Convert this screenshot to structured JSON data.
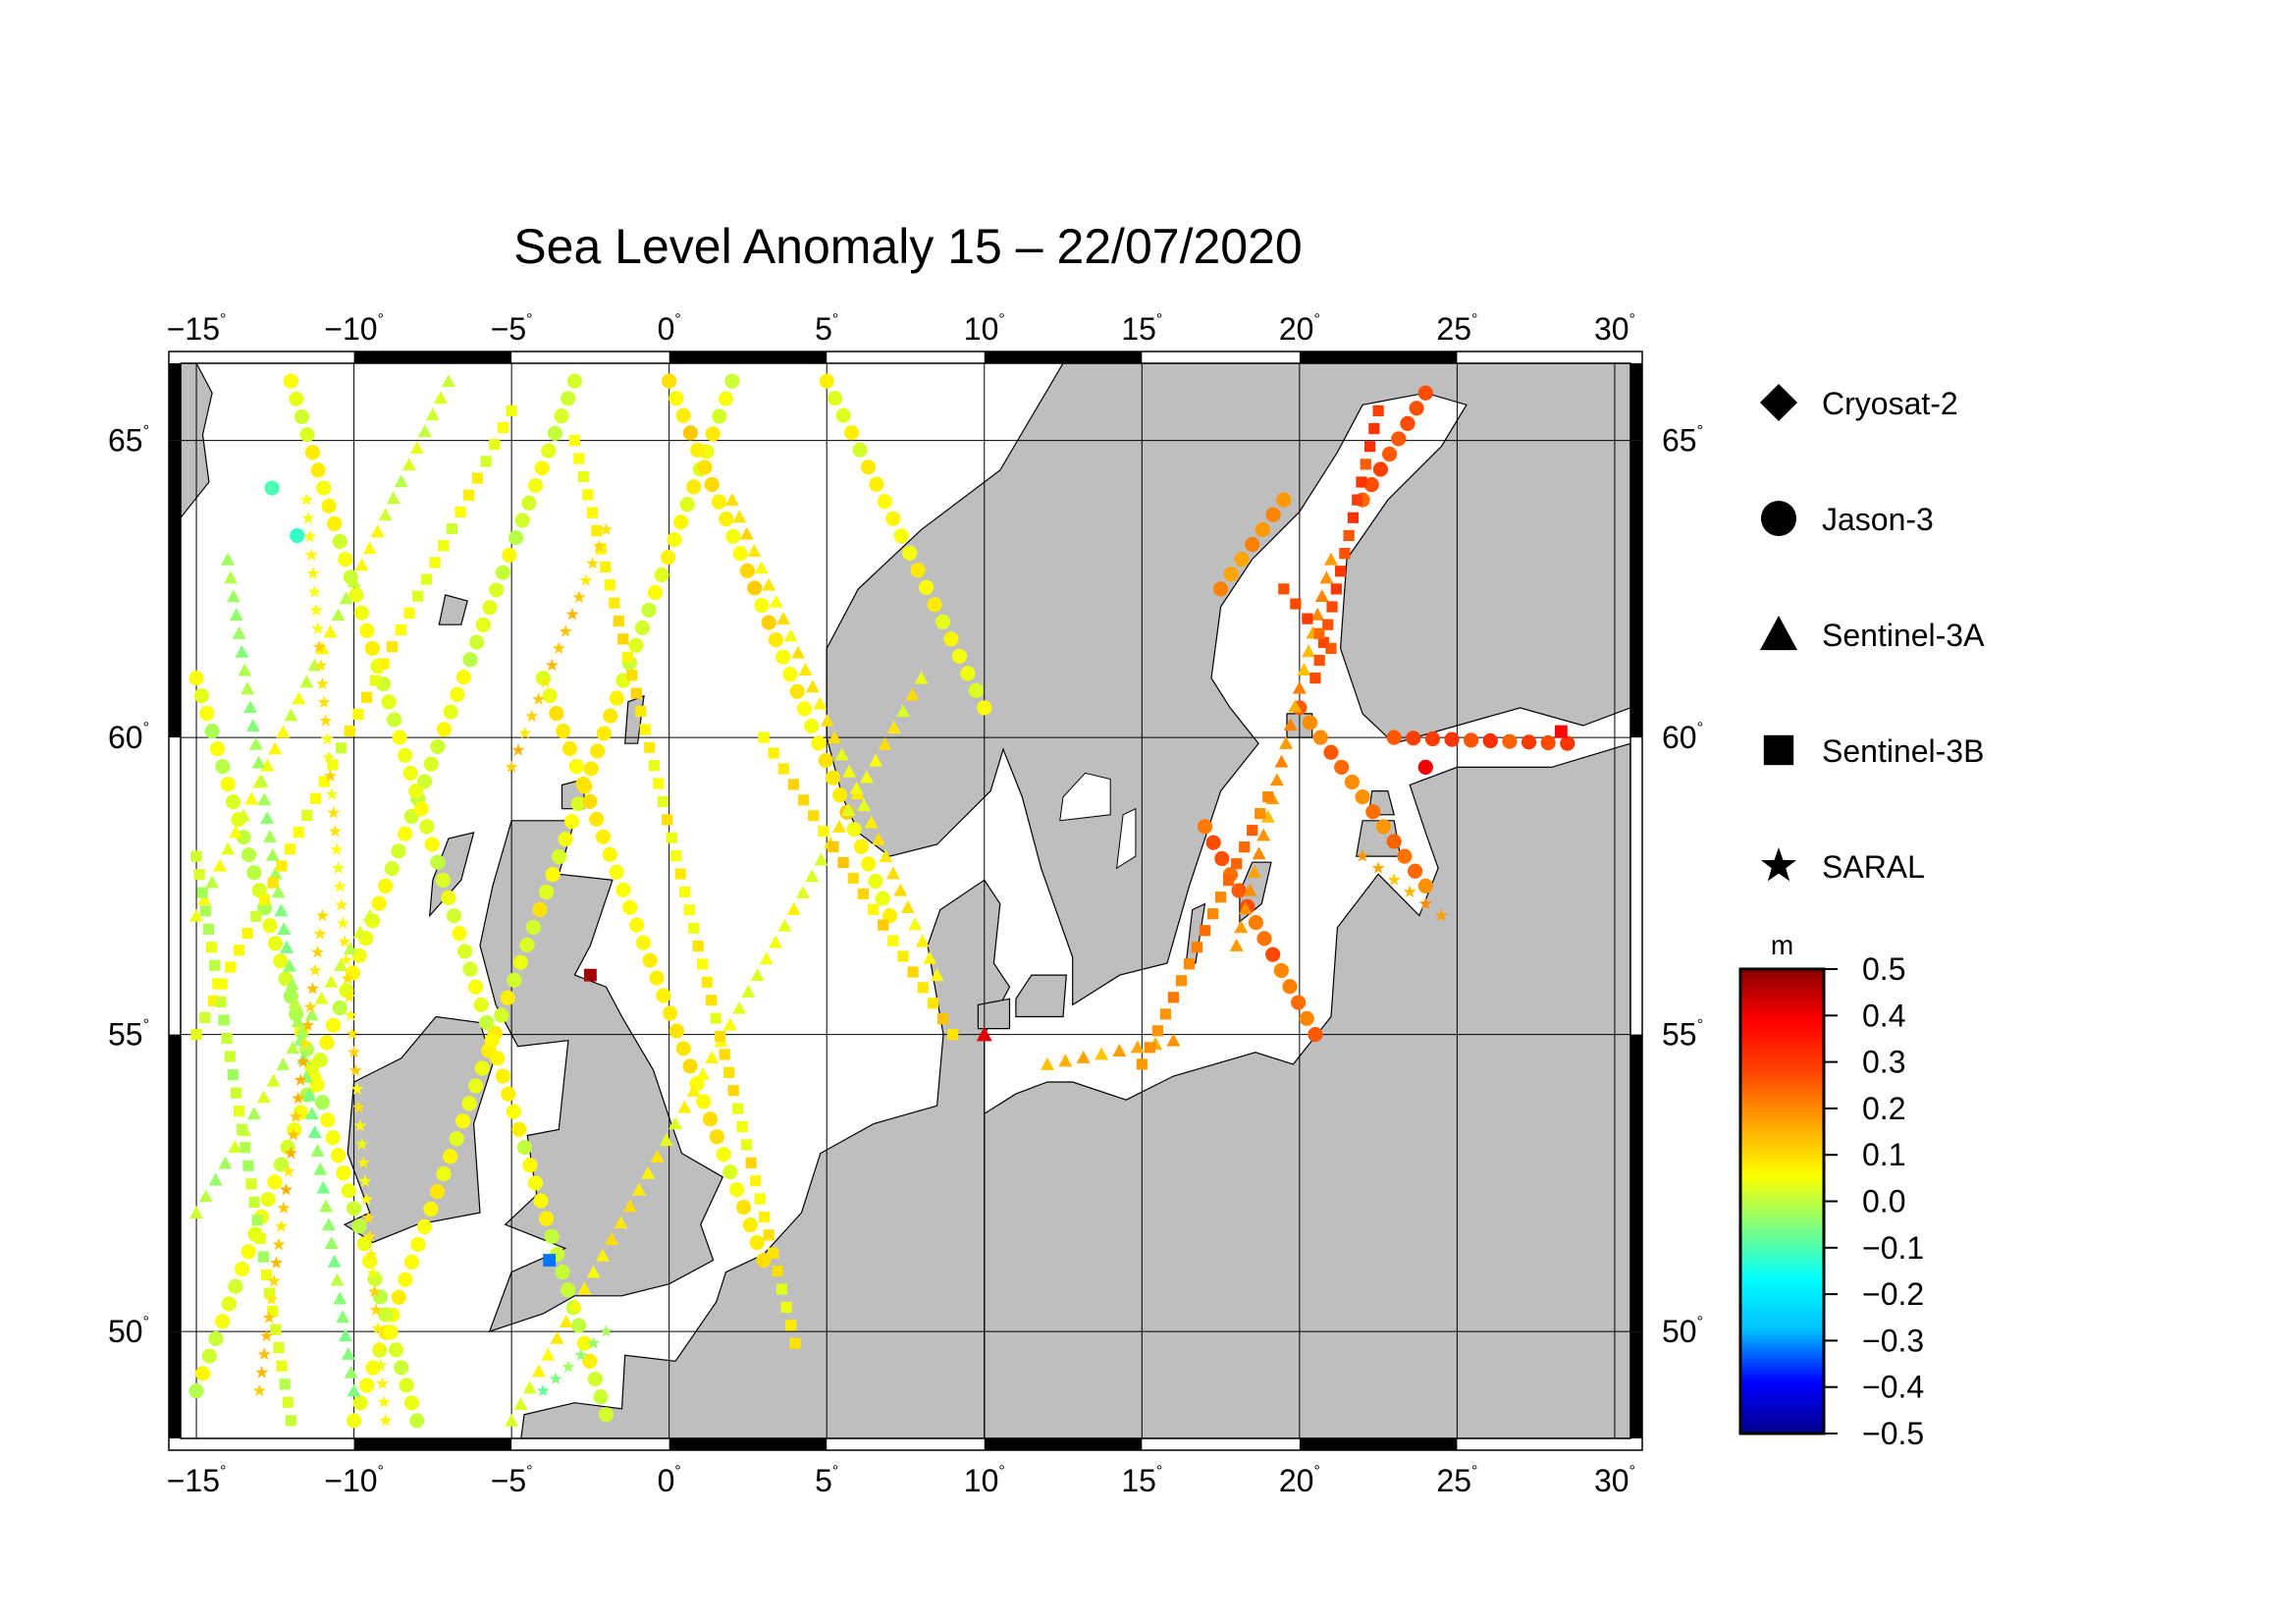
{
  "title": "Sea Level Anomaly 15 – 22/07/2020",
  "map": {
    "lon_range": [
      -15.5,
      30.5
    ],
    "lat_range": [
      48.2,
      66.3
    ],
    "lon_ticks": [
      {
        "value": -15,
        "label": "−15"
      },
      {
        "value": -10,
        "label": "−10"
      },
      {
        "value": -5,
        "label": "−5"
      },
      {
        "value": 0,
        "label": "0"
      },
      {
        "value": 5,
        "label": "5"
      },
      {
        "value": 10,
        "label": "10"
      },
      {
        "value": 15,
        "label": "15"
      },
      {
        "value": 20,
        "label": "20"
      },
      {
        "value": 25,
        "label": "25"
      },
      {
        "value": 30,
        "label": "30"
      }
    ],
    "lat_ticks": [
      {
        "value": 50,
        "label": "50"
      },
      {
        "value": 55,
        "label": "55"
      },
      {
        "value": 60,
        "label": "60"
      },
      {
        "value": 65,
        "label": "65"
      }
    ],
    "degree_symbol": "°",
    "land_color": "#bebebe",
    "ocean_color": "#ffffff",
    "grid": true
  },
  "legend": {
    "satellites": [
      {
        "name": "Cryosat-2",
        "marker": "diamond"
      },
      {
        "name": "Jason-3",
        "marker": "circle"
      },
      {
        "name": "Sentinel-3A",
        "marker": "triangle"
      },
      {
        "name": "Sentinel-3B",
        "marker": "square"
      },
      {
        "name": "SARAL",
        "marker": "star"
      }
    ]
  },
  "colorbar": {
    "unit": "m",
    "min": -0.5,
    "max": 0.5,
    "ticks": [
      {
        "value": 0.5,
        "label": "0.5"
      },
      {
        "value": 0.4,
        "label": "0.4"
      },
      {
        "value": 0.3,
        "label": "0.3"
      },
      {
        "value": 0.2,
        "label": "0.2"
      },
      {
        "value": 0.1,
        "label": "0.1"
      },
      {
        "value": 0.0,
        "label": "0.0"
      },
      {
        "value": -0.1,
        "label": "−0.1"
      },
      {
        "value": -0.2,
        "label": "−0.2"
      },
      {
        "value": -0.3,
        "label": "−0.3"
      },
      {
        "value": -0.4,
        "label": "−0.4"
      },
      {
        "value": -0.5,
        "label": "−0.5"
      }
    ],
    "stops": [
      "#00008b",
      "#0000ff",
      "#00bfff",
      "#00ffff",
      "#7fff7f",
      "#ffff00",
      "#ffa500",
      "#ff4500",
      "#ff0000",
      "#8b0000"
    ]
  },
  "tracks": [
    {
      "sat": "Jason-3",
      "from": [
        -15.0,
        49.0
      ],
      "to": [
        -3.0,
        66.0
      ],
      "sla": 0.03
    },
    {
      "sat": "Jason-3",
      "from": [
        -10.0,
        48.5
      ],
      "to": [
        2.0,
        66.0
      ],
      "sla": 0.05
    },
    {
      "sat": "Jason-3",
      "from": [
        -15.0,
        61.0
      ],
      "to": [
        -8.0,
        48.5
      ],
      "sla": 0.02
    },
    {
      "sat": "Jason-3",
      "from": [
        -12.0,
        66.0
      ],
      "to": [
        -2.0,
        48.6
      ],
      "sla": 0.04
    },
    {
      "sat": "Jason-3",
      "from": [
        0.0,
        66.0
      ],
      "to": [
        7.0,
        57.0
      ],
      "sla": 0.08
    },
    {
      "sat": "Jason-3",
      "from": [
        -4.0,
        61.0
      ],
      "to": [
        3.0,
        51.2
      ],
      "sla": 0.06
    },
    {
      "sat": "Jason-3",
      "from": [
        5.0,
        66.0
      ],
      "to": [
        10.0,
        60.5
      ],
      "sla": 0.05
    },
    {
      "sat": "Jason-3",
      "from": [
        17.0,
        58.5
      ],
      "to": [
        20.5,
        55.0
      ],
      "sla": 0.24
    },
    {
      "sat": "Jason-3",
      "from": [
        20.0,
        60.5
      ],
      "to": [
        24.0,
        57.5
      ],
      "sla": 0.22
    },
    {
      "sat": "Jason-3",
      "from": [
        22.0,
        64.0
      ],
      "to": [
        24.0,
        65.8
      ],
      "sla": 0.25
    },
    {
      "sat": "Jason-3",
      "from": [
        17.5,
        62.5
      ],
      "to": [
        19.5,
        64.0
      ],
      "sla": 0.2
    },
    {
      "sat": "Jason-3",
      "from": [
        23.0,
        60.0
      ],
      "to": [
        28.5,
        59.9
      ],
      "sla": 0.28
    },
    {
      "sat": "Sentinel-3A",
      "from": [
        -15.0,
        57.0
      ],
      "to": [
        -7.0,
        66.0
      ],
      "sla": 0.03
    },
    {
      "sat": "Sentinel-3A",
      "from": [
        -5.0,
        48.5
      ],
      "to": [
        8.0,
        61.0
      ],
      "sla": 0.06
    },
    {
      "sat": "Sentinel-3A",
      "from": [
        -15.0,
        52.0
      ],
      "to": [
        -9.5,
        57.0
      ],
      "sla": 0.0
    },
    {
      "sat": "Sentinel-3A",
      "from": [
        2.0,
        64.0
      ],
      "to": [
        8.5,
        56.0
      ],
      "sla": 0.07
    },
    {
      "sat": "Sentinel-3A",
      "from": [
        -14.0,
        63.0
      ],
      "to": [
        -10.0,
        49.0
      ],
      "sla": -0.03
    },
    {
      "sat": "Sentinel-3A",
      "from": [
        18.0,
        56.5
      ],
      "to": [
        21.0,
        63.0
      ],
      "sla": 0.17
    },
    {
      "sat": "Sentinel-3A",
      "from": [
        12.0,
        54.5
      ],
      "to": [
        16.0,
        54.9
      ],
      "sla": 0.15
    },
    {
      "sat": "Sentinel-3B",
      "from": [
        -15.0,
        55.0
      ],
      "to": [
        -5.0,
        65.5
      ],
      "sla": 0.05
    },
    {
      "sat": "Sentinel-3B",
      "from": [
        -3.0,
        65.0
      ],
      "to": [
        4.0,
        49.8
      ],
      "sla": 0.07
    },
    {
      "sat": "Sentinel-3B",
      "from": [
        3.0,
        60.0
      ],
      "to": [
        9.0,
        55.0
      ],
      "sla": 0.09
    },
    {
      "sat": "Sentinel-3B",
      "from": [
        -15.0,
        58.0
      ],
      "to": [
        -12.0,
        48.5
      ],
      "sla": 0.01
    },
    {
      "sat": "Sentinel-3B",
      "from": [
        15.0,
        54.5
      ],
      "to": [
        19.0,
        59.0
      ],
      "sla": 0.22
    },
    {
      "sat": "Sentinel-3B",
      "from": [
        20.5,
        61.0
      ],
      "to": [
        22.5,
        65.5
      ],
      "sla": 0.27
    },
    {
      "sat": "Sentinel-3B",
      "from": [
        19.5,
        62.5
      ],
      "to": [
        21.0,
        61.5
      ],
      "sla": 0.26
    },
    {
      "sat": "SARAL",
      "from": [
        -13.0,
        49.0
      ],
      "to": [
        -11.0,
        57.0
      ],
      "sla": 0.12
    },
    {
      "sat": "SARAL",
      "from": [
        -9.0,
        48.5
      ],
      "to": [
        -11.5,
        64.0
      ],
      "sla": 0.08
    },
    {
      "sat": "SARAL",
      "from": [
        -5.0,
        59.5
      ],
      "to": [
        -2.0,
        63.5
      ],
      "sla": 0.11
    },
    {
      "sat": "SARAL",
      "from": [
        -4.0,
        49.0
      ],
      "to": [
        -2.0,
        50.0
      ],
      "sla": -0.05
    },
    {
      "sat": "SARAL",
      "from": [
        22.0,
        58.0
      ],
      "to": [
        24.5,
        57.0
      ],
      "sla": 0.16
    }
  ],
  "extreme_points": [
    {
      "sat": "Sentinel-3B",
      "lon": -2.5,
      "lat": 56.0,
      "sla": 0.48
    },
    {
      "sat": "Sentinel-3B",
      "lon": -3.8,
      "lat": 51.2,
      "sla": -0.32
    },
    {
      "sat": "Sentinel-3A",
      "lon": 10.0,
      "lat": 55.0,
      "sla": 0.42
    },
    {
      "sat": "Jason-3",
      "lon": -11.8,
      "lat": 63.4,
      "sla": -0.12
    },
    {
      "sat": "Jason-3",
      "lon": -12.6,
      "lat": 64.2,
      "sla": -0.1
    },
    {
      "sat": "Sentinel-3B",
      "lon": 28.3,
      "lat": 60.1,
      "sla": 0.38
    },
    {
      "sat": "Jason-3",
      "lon": 24.0,
      "lat": 59.5,
      "sla": 0.4
    }
  ]
}
